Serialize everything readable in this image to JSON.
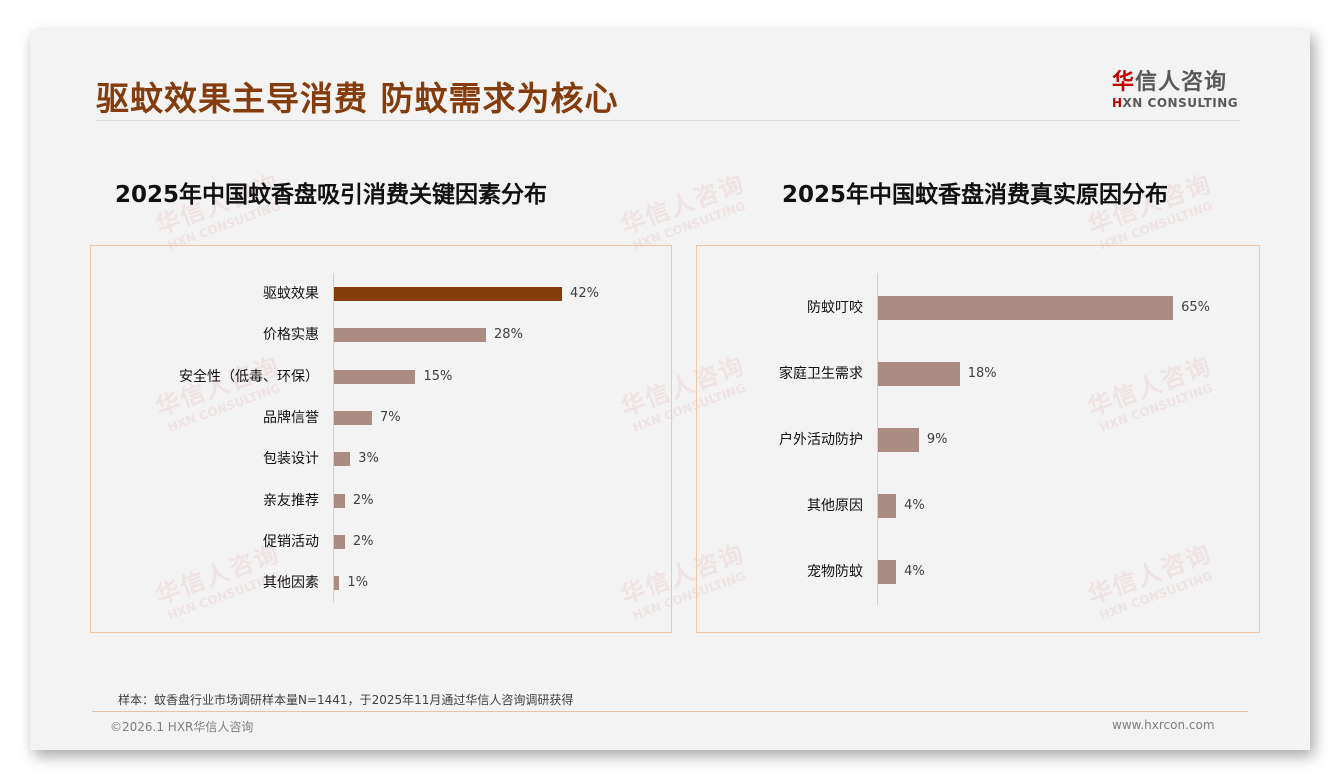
{
  "header": {
    "title": "驱蚊效果主导消费 防蚊需求为核心",
    "logo": {
      "cn_accent": "华",
      "cn_rest": "信人咨询",
      "en_accent": "H",
      "en_rest": "XN CONSULTING"
    }
  },
  "watermark": {
    "cn": "华信人咨询",
    "en": "HXN CONSULTING"
  },
  "colors": {
    "title": "#843c0c",
    "highlight_bar": "#843c0c",
    "bar": "#ab8c82",
    "panel_border": "#f4c7a4",
    "logo_red": "#c00000"
  },
  "chart_data": [
    {
      "type": "bar",
      "orientation": "horizontal",
      "title": "2025年中国蚊香盘吸引消费关键因素分布",
      "categories": [
        "驱蚊效果",
        "价格实惠",
        "安全性（低毒、环保）",
        "品牌信誉",
        "包装设计",
        "亲友推荐",
        "促销活动",
        "其他因素"
      ],
      "values": [
        42,
        28,
        15,
        7,
        3,
        2,
        2,
        1
      ],
      "labels": [
        "42%",
        "28%",
        "15%",
        "7%",
        "3%",
        "2%",
        "2%",
        "1%"
      ],
      "highlight_index": 0,
      "unit": "%",
      "xlabel": "",
      "ylabel": "",
      "grid": false,
      "legend": null
    },
    {
      "type": "bar",
      "orientation": "horizontal",
      "title": "2025年中国蚊香盘消费真实原因分布",
      "categories": [
        "防蚊叮咬",
        "家庭卫生需求",
        "户外活动防护",
        "其他原因",
        "宠物防蚊"
      ],
      "values": [
        65,
        18,
        9,
        4,
        4
      ],
      "labels": [
        "65%",
        "18%",
        "9%",
        "4%",
        "4%"
      ],
      "unit": "%",
      "xlabel": "",
      "ylabel": "",
      "grid": false,
      "legend": null
    }
  ],
  "footer": {
    "note": "样本：蚊香盘行业市场调研样本量N=1441，于2025年11月通过华信人咨询调研获得",
    "copyright": "©2026.1 HXR华信人咨询",
    "website": "www.hxrcon.com"
  }
}
